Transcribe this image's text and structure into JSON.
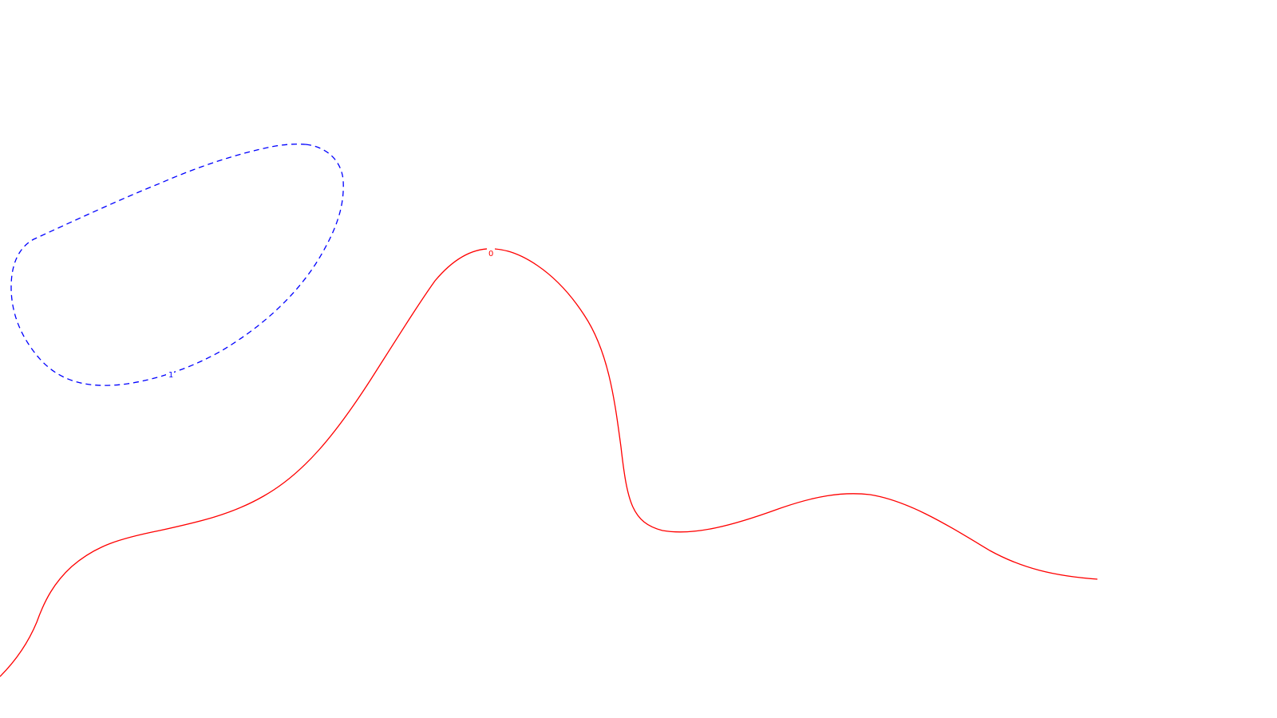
{
  "contours": [
    {
      "label": "0",
      "color": "#ff0000",
      "style": "solid"
    },
    {
      "label": "1",
      "color": "#0000ff",
      "style": "dashed"
    }
  ]
}
